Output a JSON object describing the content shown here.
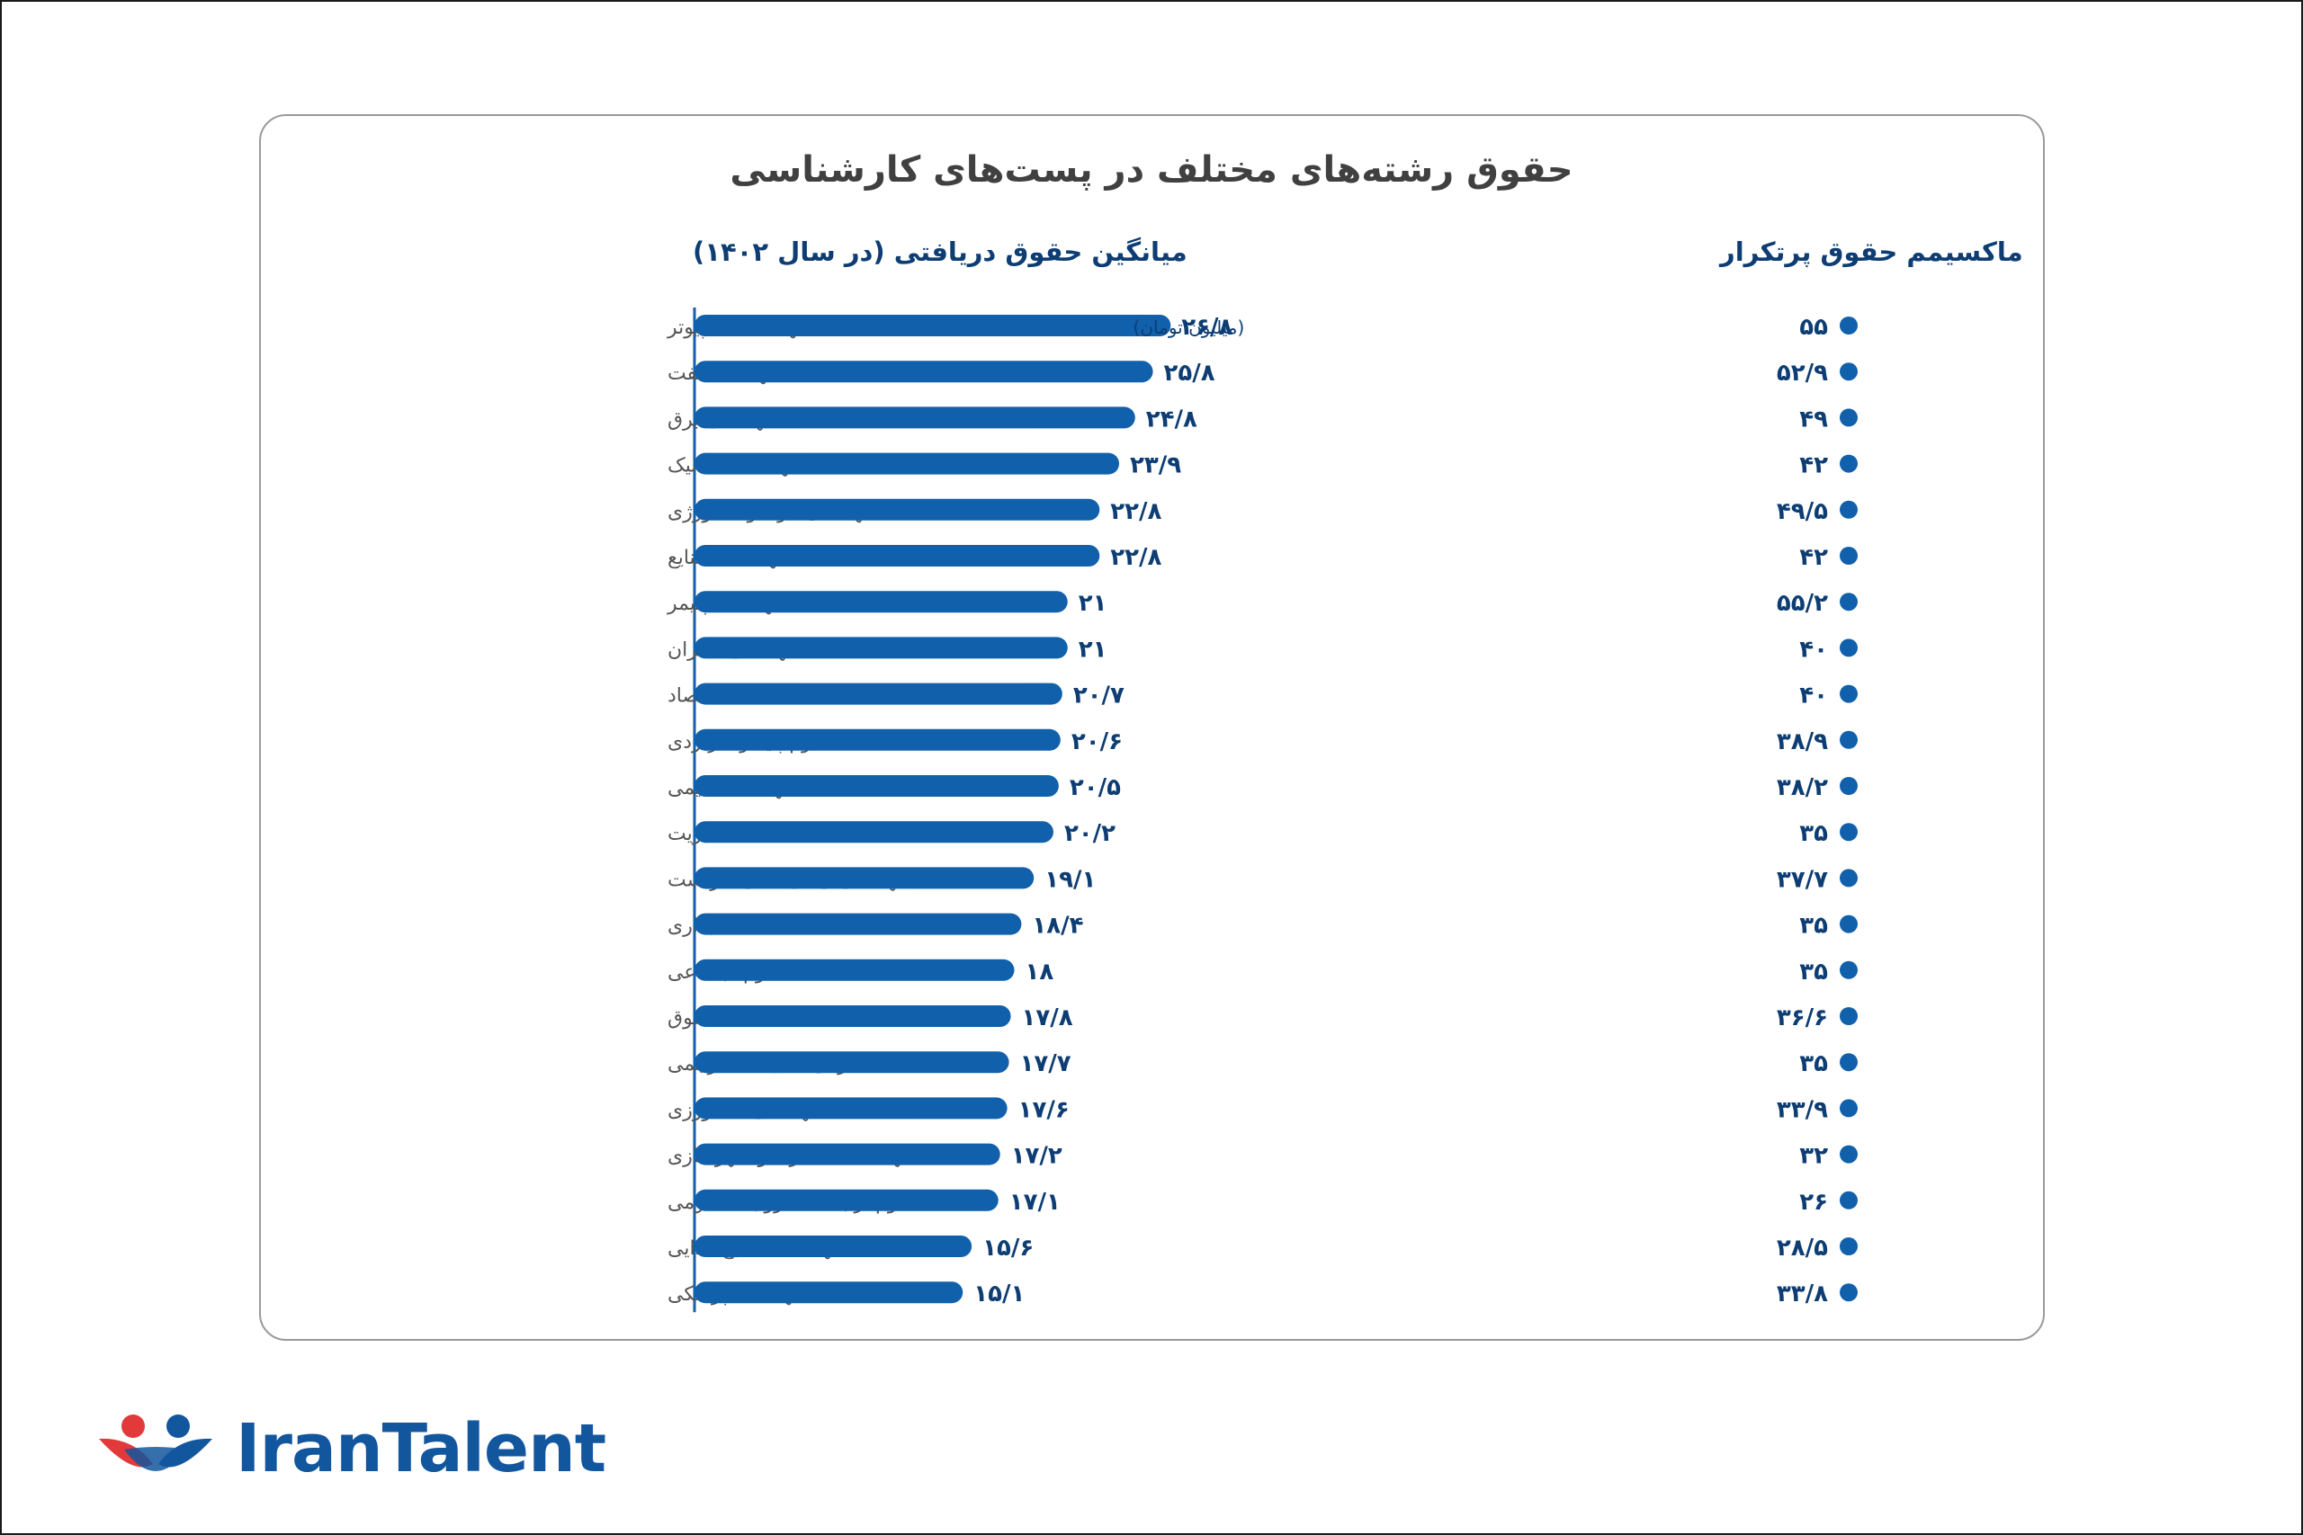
{
  "chart_data": {
    "type": "bar",
    "title": "حقوق رشته‌های مختلف در پست‌های کارشناسی",
    "avg_header": "میانگین حقوق دریافتی (در سال ۱۴۰۲)",
    "max_header": "ماکسیمم حقوق پرتکرار",
    "unit_note": "(میلیون تومان)",
    "bar_color": "#1160ab",
    "dot_color": "#1160ab",
    "categories": [
      "مهندسی کامپیوتر",
      "مهندسی نفت",
      "مهندسی برق",
      "مهندسی مکانیک",
      "مهندسی مواد و متالورژی",
      "مهندسی صنایع",
      "مهندسی پلیمر",
      "مهندسی عمران",
      "اقتصاد",
      "علوم پایه و کاربردی",
      "مهندسی شیمی",
      "مدیریت",
      "مهندسی ایمنی/ محیط زیست",
      "مالی/ حسابداری",
      "علوم اجتماعی",
      "حقوق",
      "زبان/ ادبیات/ مترجمی",
      "مهندسی کشاورزی",
      "مهندسی معماری و شهرسازی",
      "علوم ارتباطات/ روابط عمومی",
      "مهندسی صنایع غذایی",
      "مهندسی پزشکی"
    ],
    "series": [
      {
        "name": "میانگین حقوق دریافتی (در سال ۱۴۰۲)",
        "values": [
          26.8,
          25.8,
          24.8,
          23.9,
          22.8,
          22.8,
          21,
          21,
          20.7,
          20.6,
          20.5,
          20.2,
          19.1,
          18.4,
          18,
          17.8,
          17.7,
          17.6,
          17.2,
          17.1,
          15.6,
          15.1
        ],
        "labels": [
          "۲۶/۸",
          "۲۵/۸",
          "۲۴/۸",
          "۲۳/۹",
          "۲۲/۸",
          "۲۲/۸",
          "۲۱",
          "۲۱",
          "۲۰/۷",
          "۲۰/۶",
          "۲۰/۵",
          "۲۰/۲",
          "۱۹/۱",
          "۱۸/۴",
          "۱۸",
          "۱۷/۸",
          "۱۷/۷",
          "۱۷/۶",
          "۱۷/۲",
          "۱۷/۱",
          "۱۵/۶",
          "۱۵/۱"
        ]
      },
      {
        "name": "ماکسیمم حقوق پرتکرار",
        "values": [
          55,
          52.9,
          49,
          42,
          49.5,
          42,
          55.2,
          40,
          40,
          38.9,
          38.2,
          35,
          37.7,
          35,
          35,
          36.6,
          35,
          33.9,
          32,
          26,
          28.5,
          33.8
        ],
        "labels": [
          "۵۵",
          "۵۲/۹",
          "۴۹",
          "۴۲",
          "۴۹/۵",
          "۴۲",
          "۵۵/۲",
          "۴۰",
          "۴۰",
          "۳۸/۹",
          "۳۸/۲",
          "۳۵",
          "۳۷/۷",
          "۳۵",
          "۳۵",
          "۳۶/۶",
          "۳۵",
          "۳۳/۹",
          "۳۲",
          "۲۶",
          "۲۸/۵",
          "۳۳/۸"
        ]
      }
    ],
    "xlim": [
      0,
      30
    ]
  },
  "brand": {
    "name": "IranTalent",
    "primary": "#12569e",
    "accent": "#e23a3a"
  }
}
